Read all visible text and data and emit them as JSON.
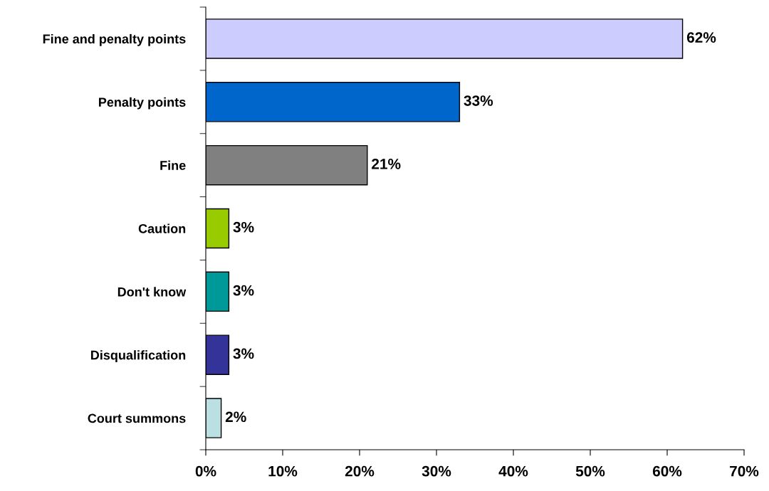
{
  "chart_data": {
    "type": "bar",
    "orientation": "horizontal",
    "categories": [
      "Fine and penalty points",
      "Penalty points",
      "Fine",
      "Caution",
      "Don't know",
      "Disqualification",
      "Court summons"
    ],
    "values": [
      62,
      33,
      21,
      3,
      3,
      3,
      2
    ],
    "colors": [
      "#ccccff",
      "#0066cc",
      "#808080",
      "#99cc00",
      "#009999",
      "#333399",
      "#bbe0e3"
    ],
    "value_labels": [
      "62%",
      "33%",
      "21%",
      "3%",
      "3%",
      "3%",
      "2%"
    ],
    "xlim": [
      0,
      70
    ],
    "xticks": [
      {
        "value": 0,
        "label": "0%"
      },
      {
        "value": 10,
        "label": "10%"
      },
      {
        "value": 20,
        "label": "20%"
      },
      {
        "value": 30,
        "label": "30%"
      },
      {
        "value": 40,
        "label": "40%"
      },
      {
        "value": 50,
        "label": "50%"
      },
      {
        "value": 60,
        "label": "60%"
      },
      {
        "value": 70,
        "label": "70%"
      }
    ],
    "grid": false,
    "legend": false
  }
}
